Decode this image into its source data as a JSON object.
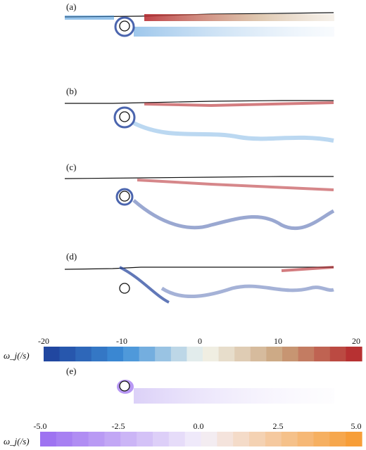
{
  "panels": [
    {
      "label": "(a)"
    },
    {
      "label": "(b)"
    },
    {
      "label": "(c)"
    },
    {
      "label": "(d)"
    },
    {
      "label": "(e)"
    }
  ],
  "colorbar1": {
    "label": "ω_j(/s)",
    "ticks": [
      "-20",
      "-10",
      "0",
      "10",
      "20"
    ],
    "range": [
      -20,
      20
    ],
    "segments": 20,
    "colors": {
      "low": "#1e3f9a",
      "mid_low": "#3d8fd8",
      "center": "#f4f6ee",
      "mid_high": "#c9a27a",
      "high": "#b5242a"
    }
  },
  "colorbar2": {
    "label": "ω_j(/s)",
    "ticks": [
      "-5.0",
      "-2.5",
      "0.0",
      "2.5",
      "5.0"
    ],
    "range": [
      -5.0,
      5.0
    ],
    "segments": 20,
    "colors": {
      "low": "#9a6cf0",
      "center": "#f3f0fb",
      "high": "#f79a2e"
    }
  }
}
